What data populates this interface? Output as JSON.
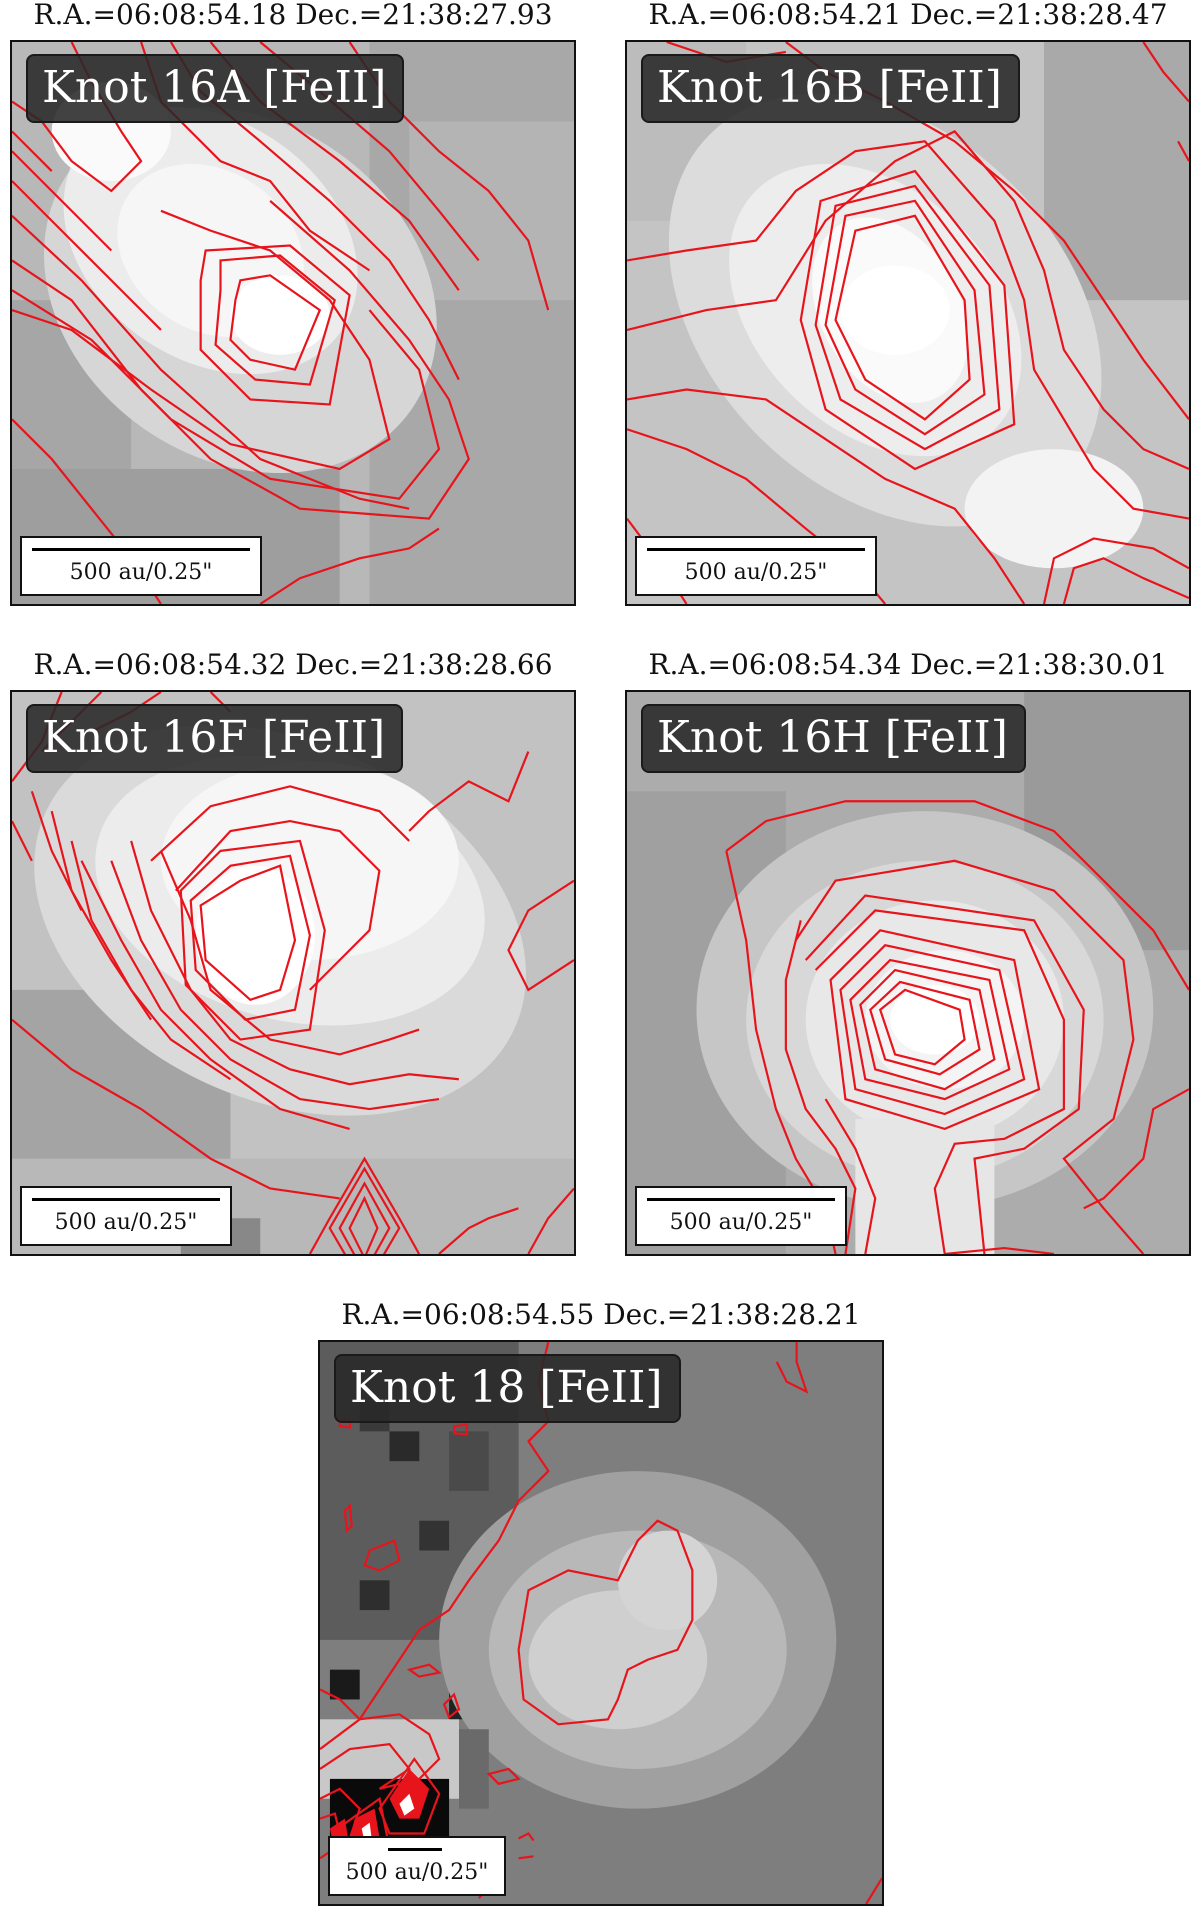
{
  "panels": [
    {
      "coord": "R.A.=06:08:54.18 Dec.=21:38:27.93",
      "title": "Knot 16A [FeII]",
      "scale": "500 au/0.25\""
    },
    {
      "coord": "R.A.=06:08:54.21 Dec.=21:38:28.47",
      "title": "Knot 16B [FeII]",
      "scale": "500 au/0.25\""
    },
    {
      "coord": "R.A.=06:08:54.32 Dec.=21:38:28.66",
      "title": "Knot 16F [FeII]",
      "scale": "500 au/0.25\""
    },
    {
      "coord": "R.A.=06:08:54.34 Dec.=21:38:30.01",
      "title": "Knot 16H [FeII]",
      "scale": "500 au/0.25\""
    },
    {
      "coord": "R.A.=06:08:54.55 Dec.=21:38:28.21",
      "title": "Knot 18 [FeII]",
      "scale": "500 au/0.25\""
    }
  ],
  "colors": {
    "contour": "#e8141c",
    "label_bg": "#2a2a2a",
    "label_text": "#ffffff"
  }
}
